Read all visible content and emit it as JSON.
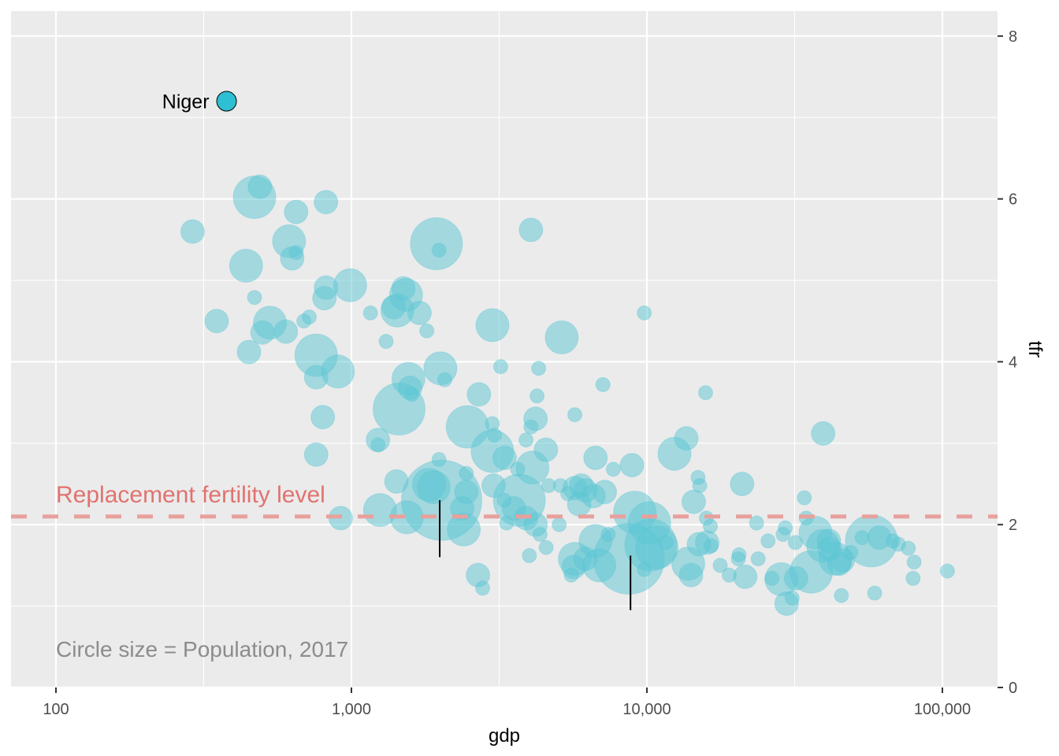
{
  "chart_data": {
    "type": "scatter",
    "title": "",
    "xlabel": "gdp",
    "ylabel": "tfr",
    "x_scale": "log10",
    "xlim": [
      70,
      150000
    ],
    "ylim": [
      0,
      8.2
    ],
    "x_ticks": [
      100,
      1000,
      10000,
      100000
    ],
    "x_tick_labels": [
      "100",
      "1,000",
      "10,000",
      "100,000"
    ],
    "y_ticks": [
      0,
      2,
      4,
      6,
      8
    ],
    "y_tick_labels": [
      "0",
      "2",
      "4",
      "6",
      "8"
    ],
    "y_axis_position": "right",
    "grid": true,
    "point_color": "#5bc5d4",
    "point_alpha": 0.5,
    "size_legend_note": "Circle size = Population, 2017",
    "reference_line": {
      "y": 2.1,
      "label": "Replacement fertility level",
      "color": "#e8a09c",
      "style": "dashed"
    },
    "highlight": {
      "name": "Niger",
      "gdp": 378,
      "tfr": 7.2,
      "color": "#2fbfd2"
    },
    "markers": [
      {
        "gdp": 1990,
        "tfr_from": 1.6,
        "tfr_to": 2.3
      },
      {
        "gdp": 8800,
        "tfr_from": 0.95,
        "tfr_to": 1.62
      }
    ],
    "points": [
      {
        "gdp": 290,
        "tfr": 5.6,
        "size": 2
      },
      {
        "gdp": 470,
        "tfr": 6.02,
        "size": 4
      },
      {
        "gdp": 490,
        "tfr": 6.15,
        "size": 2
      },
      {
        "gdp": 650,
        "tfr": 5.84,
        "size": 2
      },
      {
        "gdp": 820,
        "tfr": 5.96,
        "size": 2
      },
      {
        "gdp": 615,
        "tfr": 5.48,
        "size": 3
      },
      {
        "gdp": 650,
        "tfr": 5.34,
        "size": 1
      },
      {
        "gdp": 630,
        "tfr": 5.27,
        "size": 2
      },
      {
        "gdp": 440,
        "tfr": 5.18,
        "size": 3
      },
      {
        "gdp": 820,
        "tfr": 4.91,
        "size": 2
      },
      {
        "gdp": 810,
        "tfr": 4.78,
        "size": 2
      },
      {
        "gdp": 990,
        "tfr": 4.94,
        "size": 3
      },
      {
        "gdp": 470,
        "tfr": 4.79,
        "size": 1
      },
      {
        "gdp": 350,
        "tfr": 4.5,
        "size": 2
      },
      {
        "gdp": 530,
        "tfr": 4.48,
        "size": 3
      },
      {
        "gdp": 500,
        "tfr": 4.36,
        "size": 2
      },
      {
        "gdp": 600,
        "tfr": 4.37,
        "size": 2
      },
      {
        "gdp": 690,
        "tfr": 4.5,
        "size": 1
      },
      {
        "gdp": 720,
        "tfr": 4.55,
        "size": 1
      },
      {
        "gdp": 450,
        "tfr": 4.12,
        "size": 2
      },
      {
        "gdp": 760,
        "tfr": 4.08,
        "size": 4
      },
      {
        "gdp": 760,
        "tfr": 3.81,
        "size": 2
      },
      {
        "gdp": 900,
        "tfr": 3.88,
        "size": 3
      },
      {
        "gdp": 800,
        "tfr": 3.32,
        "size": 2
      },
      {
        "gdp": 760,
        "tfr": 2.86,
        "size": 2
      },
      {
        "gdp": 920,
        "tfr": 2.08,
        "size": 2
      },
      {
        "gdp": 1940,
        "tfr": 5.45,
        "size": 5
      },
      {
        "gdp": 1980,
        "tfr": 5.37,
        "size": 1
      },
      {
        "gdp": 4050,
        "tfr": 5.62,
        "size": 2
      },
      {
        "gdp": 1160,
        "tfr": 4.6,
        "size": 1
      },
      {
        "gdp": 1390,
        "tfr": 4.67,
        "size": 2
      },
      {
        "gdp": 1430,
        "tfr": 4.63,
        "size": 3
      },
      {
        "gdp": 1500,
        "tfr": 4.9,
        "size": 2
      },
      {
        "gdp": 1530,
        "tfr": 4.82,
        "size": 3
      },
      {
        "gdp": 1700,
        "tfr": 4.6,
        "size": 2
      },
      {
        "gdp": 1800,
        "tfr": 4.38,
        "size": 1
      },
      {
        "gdp": 1310,
        "tfr": 4.25,
        "size": 1
      },
      {
        "gdp": 3000,
        "tfr": 4.45,
        "size": 3
      },
      {
        "gdp": 5150,
        "tfr": 4.3,
        "size": 3
      },
      {
        "gdp": 9800,
        "tfr": 4.6,
        "size": 1
      },
      {
        "gdp": 2000,
        "tfr": 3.92,
        "size": 3
      },
      {
        "gdp": 2070,
        "tfr": 3.78,
        "size": 1
      },
      {
        "gdp": 1560,
        "tfr": 3.79,
        "size": 3
      },
      {
        "gdp": 1580,
        "tfr": 3.68,
        "size": 2
      },
      {
        "gdp": 1600,
        "tfr": 3.6,
        "size": 1
      },
      {
        "gdp": 1450,
        "tfr": 3.42,
        "size": 5
      },
      {
        "gdp": 3200,
        "tfr": 3.94,
        "size": 1
      },
      {
        "gdp": 4300,
        "tfr": 3.92,
        "size": 1
      },
      {
        "gdp": 2700,
        "tfr": 3.6,
        "size": 2
      },
      {
        "gdp": 4250,
        "tfr": 3.58,
        "size": 1
      },
      {
        "gdp": 7100,
        "tfr": 3.72,
        "size": 1
      },
      {
        "gdp": 15800,
        "tfr": 3.62,
        "size": 1
      },
      {
        "gdp": 2470,
        "tfr": 3.2,
        "size": 4
      },
      {
        "gdp": 4200,
        "tfr": 3.3,
        "size": 2
      },
      {
        "gdp": 4050,
        "tfr": 3.2,
        "size": 1
      },
      {
        "gdp": 3000,
        "tfr": 3.24,
        "size": 1
      },
      {
        "gdp": 3050,
        "tfr": 3.1,
        "size": 1
      },
      {
        "gdp": 3900,
        "tfr": 3.04,
        "size": 1
      },
      {
        "gdp": 5700,
        "tfr": 3.35,
        "size": 1
      },
      {
        "gdp": 1230,
        "tfr": 3.04,
        "size": 2
      },
      {
        "gdp": 1230,
        "tfr": 2.98,
        "size": 1
      },
      {
        "gdp": 3000,
        "tfr": 2.9,
        "size": 4
      },
      {
        "gdp": 3300,
        "tfr": 2.82,
        "size": 2
      },
      {
        "gdp": 4550,
        "tfr": 2.92,
        "size": 2
      },
      {
        "gdp": 4100,
        "tfr": 2.7,
        "size": 3
      },
      {
        "gdp": 3650,
        "tfr": 2.68,
        "size": 1
      },
      {
        "gdp": 6700,
        "tfr": 2.82,
        "size": 2
      },
      {
        "gdp": 8900,
        "tfr": 2.73,
        "size": 2
      },
      {
        "gdp": 7700,
        "tfr": 2.68,
        "size": 1
      },
      {
        "gdp": 12400,
        "tfr": 2.87,
        "size": 3
      },
      {
        "gdp": 13600,
        "tfr": 3.06,
        "size": 2
      },
      {
        "gdp": 39500,
        "tfr": 3.12,
        "size": 2
      },
      {
        "gdp": 1980,
        "tfr": 2.8,
        "size": 1
      },
      {
        "gdp": 1420,
        "tfr": 2.53,
        "size": 2
      },
      {
        "gdp": 1830,
        "tfr": 2.49,
        "size": 3
      },
      {
        "gdp": 2020,
        "tfr": 2.3,
        "size": 8
      },
      {
        "gdp": 1900,
        "tfr": 2.46,
        "size": 3
      },
      {
        "gdp": 2450,
        "tfr": 2.63,
        "size": 1
      },
      {
        "gdp": 2450,
        "tfr": 2.4,
        "size": 2
      },
      {
        "gdp": 2370,
        "tfr": 2.2,
        "size": 2
      },
      {
        "gdp": 2400,
        "tfr": 1.94,
        "size": 3
      },
      {
        "gdp": 1540,
        "tfr": 2.09,
        "size": 3
      },
      {
        "gdp": 1250,
        "tfr": 2.18,
        "size": 3
      },
      {
        "gdp": 3030,
        "tfr": 2.48,
        "size": 2
      },
      {
        "gdp": 3290,
        "tfr": 2.3,
        "size": 1
      },
      {
        "gdp": 3700,
        "tfr": 2.3,
        "size": 5
      },
      {
        "gdp": 3550,
        "tfr": 2.2,
        "size": 2
      },
      {
        "gdp": 3900,
        "tfr": 2.08,
        "size": 2
      },
      {
        "gdp": 3350,
        "tfr": 2.02,
        "size": 1
      },
      {
        "gdp": 4200,
        "tfr": 2.0,
        "size": 2
      },
      {
        "gdp": 4350,
        "tfr": 1.88,
        "size": 1
      },
      {
        "gdp": 4650,
        "tfr": 2.48,
        "size": 1
      },
      {
        "gdp": 5100,
        "tfr": 2.48,
        "size": 1
      },
      {
        "gdp": 5700,
        "tfr": 2.45,
        "size": 2
      },
      {
        "gdp": 6000,
        "tfr": 2.48,
        "size": 2
      },
      {
        "gdp": 6200,
        "tfr": 2.42,
        "size": 2
      },
      {
        "gdp": 5400,
        "tfr": 2.38,
        "size": 1
      },
      {
        "gdp": 6600,
        "tfr": 2.35,
        "size": 2
      },
      {
        "gdp": 7200,
        "tfr": 2.4,
        "size": 2
      },
      {
        "gdp": 5900,
        "tfr": 2.25,
        "size": 2
      },
      {
        "gdp": 5050,
        "tfr": 2.0,
        "size": 1
      },
      {
        "gdp": 2680,
        "tfr": 1.38,
        "size": 2
      },
      {
        "gdp": 2780,
        "tfr": 1.22,
        "size": 1
      },
      {
        "gdp": 4000,
        "tfr": 1.62,
        "size": 1
      },
      {
        "gdp": 4560,
        "tfr": 1.72,
        "size": 1
      },
      {
        "gdp": 5700,
        "tfr": 1.58,
        "size": 3
      },
      {
        "gdp": 5650,
        "tfr": 1.48,
        "size": 2
      },
      {
        "gdp": 5550,
        "tfr": 1.38,
        "size": 1
      },
      {
        "gdp": 6200,
        "tfr": 1.58,
        "size": 2
      },
      {
        "gdp": 6700,
        "tfr": 1.8,
        "size": 3
      },
      {
        "gdp": 6900,
        "tfr": 1.5,
        "size": 3
      },
      {
        "gdp": 7400,
        "tfr": 1.88,
        "size": 1
      },
      {
        "gdp": 8700,
        "tfr": 1.58,
        "size": 7
      },
      {
        "gdp": 9100,
        "tfr": 2.15,
        "size": 4
      },
      {
        "gdp": 10200,
        "tfr": 2.02,
        "size": 4
      },
      {
        "gdp": 10300,
        "tfr": 1.75,
        "size": 5
      },
      {
        "gdp": 10800,
        "tfr": 1.72,
        "size": 4
      },
      {
        "gdp": 9800,
        "tfr": 1.45,
        "size": 1
      },
      {
        "gdp": 11600,
        "tfr": 1.78,
        "size": 1
      },
      {
        "gdp": 13800,
        "tfr": 1.52,
        "size": 3
      },
      {
        "gdp": 14100,
        "tfr": 1.38,
        "size": 2
      },
      {
        "gdp": 15000,
        "tfr": 1.76,
        "size": 2
      },
      {
        "gdp": 14400,
        "tfr": 2.28,
        "size": 2
      },
      {
        "gdp": 14900,
        "tfr": 2.58,
        "size": 1
      },
      {
        "gdp": 15100,
        "tfr": 2.48,
        "size": 1
      },
      {
        "gdp": 15900,
        "tfr": 2.08,
        "size": 1
      },
      {
        "gdp": 16400,
        "tfr": 1.98,
        "size": 1
      },
      {
        "gdp": 16000,
        "tfr": 1.78,
        "size": 2
      },
      {
        "gdp": 16500,
        "tfr": 1.74,
        "size": 1
      },
      {
        "gdp": 17700,
        "tfr": 1.5,
        "size": 1
      },
      {
        "gdp": 19000,
        "tfr": 1.38,
        "size": 1
      },
      {
        "gdp": 20500,
        "tfr": 1.63,
        "size": 1
      },
      {
        "gdp": 20400,
        "tfr": 1.58,
        "size": 1
      },
      {
        "gdp": 21000,
        "tfr": 2.5,
        "size": 2
      },
      {
        "gdp": 21500,
        "tfr": 1.36,
        "size": 2
      },
      {
        "gdp": 23500,
        "tfr": 2.02,
        "size": 1
      },
      {
        "gdp": 23800,
        "tfr": 1.58,
        "size": 1
      },
      {
        "gdp": 25700,
        "tfr": 1.8,
        "size": 1
      },
      {
        "gdp": 26500,
        "tfr": 1.34,
        "size": 1
      },
      {
        "gdp": 28500,
        "tfr": 1.33,
        "size": 3
      },
      {
        "gdp": 28900,
        "tfr": 1.88,
        "size": 1
      },
      {
        "gdp": 29400,
        "tfr": 1.96,
        "size": 1
      },
      {
        "gdp": 29700,
        "tfr": 1.03,
        "size": 2
      },
      {
        "gdp": 31000,
        "tfr": 1.1,
        "size": 1
      },
      {
        "gdp": 31800,
        "tfr": 1.78,
        "size": 1
      },
      {
        "gdp": 32000,
        "tfr": 1.34,
        "size": 2
      },
      {
        "gdp": 34100,
        "tfr": 2.33,
        "size": 1
      },
      {
        "gdp": 34600,
        "tfr": 2.08,
        "size": 1
      },
      {
        "gdp": 36000,
        "tfr": 1.42,
        "size": 4
      },
      {
        "gdp": 37200,
        "tfr": 1.9,
        "size": 3
      },
      {
        "gdp": 39500,
        "tfr": 1.74,
        "size": 3
      },
      {
        "gdp": 41300,
        "tfr": 1.8,
        "size": 2
      },
      {
        "gdp": 41500,
        "tfr": 1.7,
        "size": 2
      },
      {
        "gdp": 43500,
        "tfr": 1.58,
        "size": 3
      },
      {
        "gdp": 44800,
        "tfr": 1.52,
        "size": 2
      },
      {
        "gdp": 46000,
        "tfr": 1.56,
        "size": 2
      },
      {
        "gdp": 45500,
        "tfr": 1.13,
        "size": 1
      },
      {
        "gdp": 49000,
        "tfr": 1.66,
        "size": 1
      },
      {
        "gdp": 53500,
        "tfr": 1.84,
        "size": 1
      },
      {
        "gdp": 57500,
        "tfr": 1.8,
        "size": 5
      },
      {
        "gdp": 59000,
        "tfr": 1.16,
        "size": 1
      },
      {
        "gdp": 61200,
        "tfr": 1.84,
        "size": 2
      },
      {
        "gdp": 68000,
        "tfr": 1.8,
        "size": 1
      },
      {
        "gdp": 71000,
        "tfr": 1.76,
        "size": 1
      },
      {
        "gdp": 76700,
        "tfr": 1.71,
        "size": 1
      },
      {
        "gdp": 80200,
        "tfr": 1.54,
        "size": 1
      },
      {
        "gdp": 79600,
        "tfr": 1.34,
        "size": 1
      },
      {
        "gdp": 104000,
        "tfr": 1.43,
        "size": 1
      }
    ]
  }
}
